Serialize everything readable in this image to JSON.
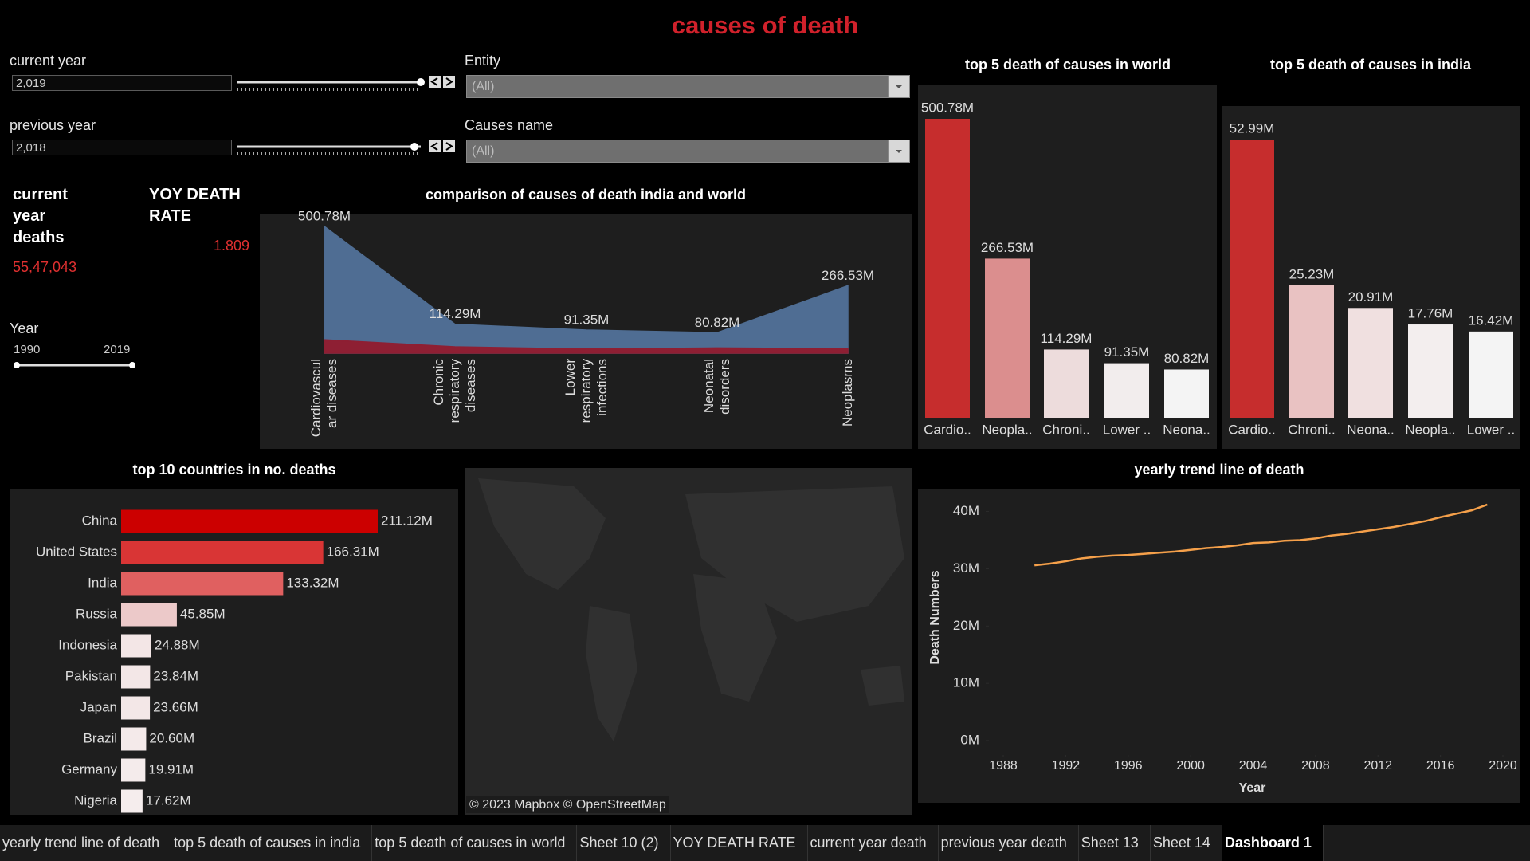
{
  "title": "causes of death",
  "filters": {
    "current_year": {
      "label": "current year",
      "value": "2,019"
    },
    "previous_year": {
      "label": "previous year",
      "value": "2,018"
    },
    "entity": {
      "label": "Entity",
      "value": "(All)"
    },
    "causes": {
      "label": "Causes name",
      "value": "(All)"
    },
    "year": {
      "label": "Year",
      "min": "1990",
      "max": "2019"
    }
  },
  "kpis": [
    {
      "label": "current year deaths",
      "value": "55,47,043"
    },
    {
      "label": "YOY DEATH RATE",
      "value": "1.809"
    }
  ],
  "map": {
    "attribution": "© 2023 Mapbox © OpenStreetMap"
  },
  "tabs": [
    "yearly trend line of death",
    "top 5 death of causes in india",
    "top 5 death of causes in world",
    "Sheet 10 (2)",
    "YOY DEATH RATE",
    "current year death",
    "previous year death",
    "Sheet 13",
    "Sheet 14",
    "Dashboard 1"
  ],
  "active_tab": 9,
  "chart_data": [
    {
      "type": "area",
      "title": "comparison of causes of death india and world",
      "categories": [
        "Cardiovascular diseases",
        "Chronic respiratory diseases",
        "Lower respiratory infections",
        "Neonatal disorders",
        "Neoplasms"
      ],
      "series": [
        {
          "color": "#4f6d93",
          "values": [
            500.78,
            114.29,
            91.35,
            80.82,
            266.53
          ],
          "value_labels": [
            "500.78M",
            "114.29M",
            "91.35M",
            "80.82M",
            "266.53M"
          ]
        },
        {
          "color": "#8e1f33",
          "values": [
            52.99,
            25.23,
            16.42,
            20.91,
            17.76
          ]
        }
      ]
    },
    {
      "type": "bar",
      "title": "top 5 death of causes in world",
      "categories": [
        "Cardio..",
        "Neopla..",
        "Chroni..",
        "Lower ..",
        "Neona.."
      ],
      "values": [
        500.78,
        266.53,
        114.29,
        91.35,
        80.82
      ],
      "value_labels": [
        "500.78M",
        "266.53M",
        "114.29M",
        "91.35M",
        "80.82M"
      ],
      "colors": [
        "#c62d2d",
        "#db8e8e",
        "#eddcdc",
        "#f2eded",
        "#f4f4f4"
      ]
    },
    {
      "type": "bar",
      "title": "top 5 death of causes in india",
      "categories": [
        "Cardio..",
        "Chroni..",
        "Neona..",
        "Neopla..",
        "Lower .."
      ],
      "values": [
        52.99,
        25.23,
        20.91,
        17.76,
        16.42
      ],
      "value_labels": [
        "52.99M",
        "25.23M",
        "20.91M",
        "17.76M",
        "16.42M"
      ],
      "colors": [
        "#c62d2d",
        "#e9c2c2",
        "#f0e0e0",
        "#f3eeee",
        "#f4f4f4"
      ]
    },
    {
      "type": "bar",
      "orientation": "horizontal",
      "title": "top 10 countries in no. deaths",
      "categories": [
        "China",
        "United States",
        "India",
        "Russia",
        "Indonesia",
        "Pakistan",
        "Japan",
        "Brazil",
        "Germany",
        "Nigeria"
      ],
      "values": [
        211.12,
        166.31,
        133.32,
        45.85,
        24.88,
        23.84,
        23.66,
        20.6,
        19.91,
        17.62
      ],
      "value_labels": [
        "211.12M",
        "166.31M",
        "133.32M",
        "45.85M",
        "24.88M",
        "23.84M",
        "23.66M",
        "20.60M",
        "19.91M",
        "17.62M"
      ],
      "colors": [
        "#cc0000",
        "#d93535",
        "#e06060",
        "#ecc9c9",
        "#f3e6e6",
        "#f3e7e7",
        "#f3e7e7",
        "#f4eaea",
        "#f4ebeb",
        "#f5eded"
      ]
    },
    {
      "type": "line",
      "title": "yearly trend line of death",
      "x_label": "Year",
      "y_label": "Death Numbers",
      "color": "#f5a04a",
      "grid": false,
      "x": [
        1990,
        1991,
        1992,
        1993,
        1994,
        1995,
        1996,
        1997,
        1998,
        1999,
        2000,
        2001,
        2002,
        2003,
        2004,
        2005,
        2006,
        2007,
        2008,
        2009,
        2010,
        2011,
        2012,
        2013,
        2014,
        2015,
        2016,
        2017,
        2018,
        2019
      ],
      "values": [
        30.6,
        30.9,
        31.3,
        31.8,
        32.1,
        32.3,
        32.4,
        32.6,
        32.8,
        33.0,
        33.3,
        33.6,
        33.8,
        34.1,
        34.5,
        34.6,
        34.9,
        35.0,
        35.3,
        35.8,
        36.1,
        36.5,
        36.9,
        37.3,
        37.8,
        38.3,
        39.0,
        39.6,
        40.2,
        41.2
      ],
      "xlim": [
        1988,
        2020
      ],
      "xticks": [
        1988,
        1992,
        1996,
        2000,
        2004,
        2008,
        2012,
        2016,
        2020
      ],
      "ylim": [
        0,
        43
      ],
      "yticks": [
        {
          "value": 0,
          "label": "0M"
        },
        {
          "value": 10,
          "label": "10M"
        },
        {
          "value": 20,
          "label": "20M"
        },
        {
          "value": 30,
          "label": "30M"
        },
        {
          "value": 40,
          "label": "40M"
        }
      ]
    }
  ]
}
